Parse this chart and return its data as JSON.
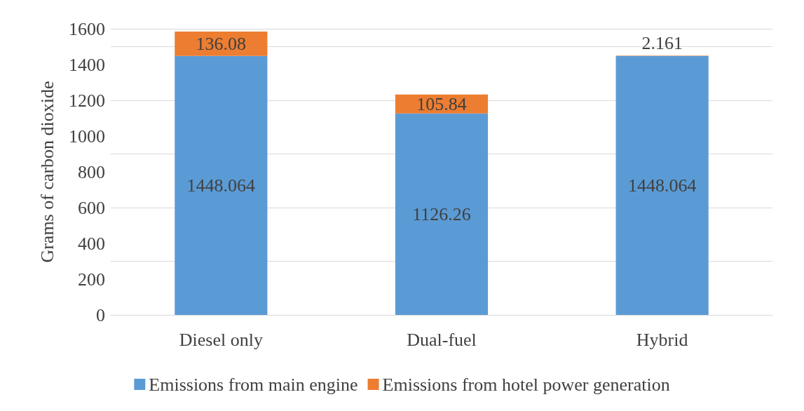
{
  "chart_data": {
    "type": "bar",
    "ylabel": "Grams of carbon dioxide",
    "categories": [
      "Diesel only",
      "Dual-fuel",
      "Hybrid"
    ],
    "stacked": true,
    "series": [
      {
        "name": "Emissions from main engine",
        "color": "#5b9bd5",
        "values": [
          1448.064,
          1126.26,
          1448.064
        ]
      },
      {
        "name": "Emissions from hotel power generation",
        "color": "#ed7d31",
        "values": [
          136.08,
          105.84,
          2.161
        ]
      }
    ],
    "ylim": [
      0,
      1600
    ],
    "yticks": [
      0,
      200,
      400,
      600,
      800,
      1000,
      1200,
      1400,
      1600
    ],
    "grid": "y",
    "legend": "bottom",
    "data_labels": true
  }
}
